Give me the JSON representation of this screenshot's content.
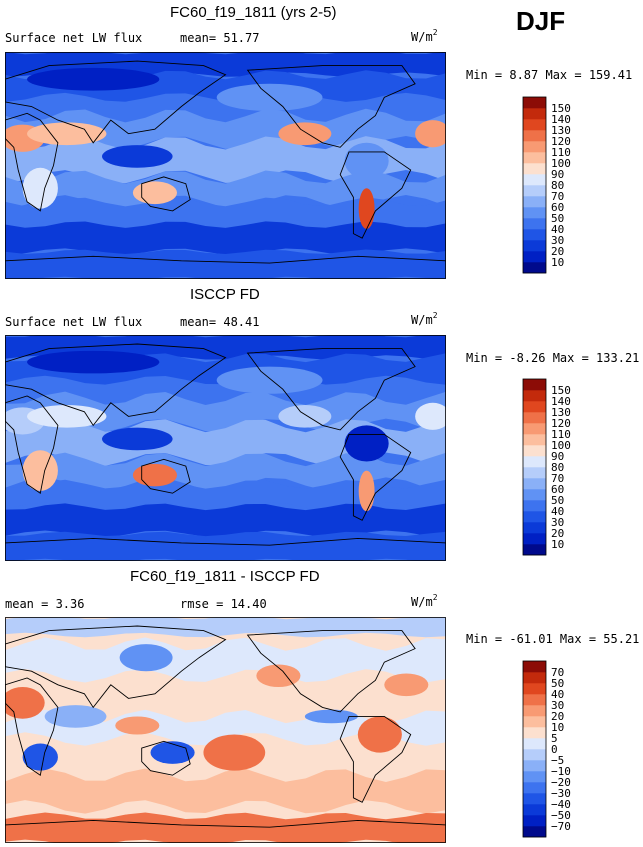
{
  "season": "DJF",
  "units_base": "W/m",
  "units_exp": "2",
  "panels": [
    {
      "title": "FC60_f19_1811 (yrs 2-5)",
      "left_label": "Surface net LW flux",
      "right_label": "mean=  51.77",
      "minmax": "Min =   8.87 Max = 159.41"
    },
    {
      "title": "ISCCP FD",
      "left_label": "Surface net LW flux",
      "right_label": "mean=  48.41",
      "minmax": "Min =  -8.26 Max = 133.21"
    },
    {
      "title": "FC60_f19_1811 - ISCCP FD",
      "left_label": "mean =   3.36",
      "right_label": "rmse =  14.40",
      "minmax": "Min = -61.01 Max =  55.21"
    }
  ],
  "chart_data": [
    {
      "type": "heatmap",
      "title": "FC60_f19_1811 (yrs 2-5)",
      "variable": "Surface net LW flux",
      "units": "W/m2",
      "mean": 51.77,
      "min": 8.87,
      "max": 159.41,
      "levels": [
        10,
        20,
        30,
        40,
        50,
        60,
        70,
        80,
        90,
        100,
        110,
        120,
        130,
        140,
        150
      ],
      "colors": [
        "#000a8c",
        "#0020c4",
        "#0b3ad8",
        "#1f55e6",
        "#3d73ef",
        "#6092f4",
        "#8ab0f7",
        "#b5cdfa",
        "#dde8fc",
        "#fce0cf",
        "#fcbe9e",
        "#f89a73",
        "#ef7148",
        "#e0471f",
        "#c32a0c",
        "#8c0c06"
      ]
    },
    {
      "type": "heatmap",
      "title": "ISCCP FD",
      "variable": "Surface net LW flux",
      "units": "W/m2",
      "mean": 48.41,
      "min": -8.26,
      "max": 133.21,
      "levels": [
        10,
        20,
        30,
        40,
        50,
        60,
        70,
        80,
        90,
        100,
        110,
        120,
        130,
        140,
        150
      ],
      "colors": [
        "#000a8c",
        "#0020c4",
        "#0b3ad8",
        "#1f55e6",
        "#3d73ef",
        "#6092f4",
        "#8ab0f7",
        "#b5cdfa",
        "#dde8fc",
        "#fce0cf",
        "#fcbe9e",
        "#f89a73",
        "#ef7148",
        "#e0471f",
        "#c32a0c",
        "#8c0c06"
      ]
    },
    {
      "type": "heatmap",
      "title": "FC60_f19_1811 - ISCCP FD",
      "units": "W/m2",
      "mean": 3.36,
      "rmse": 14.4,
      "min": -61.01,
      "max": 55.21,
      "levels": [
        -70,
        -50,
        -40,
        -30,
        -20,
        -10,
        -5,
        0,
        5,
        10,
        20,
        30,
        40,
        50,
        70
      ],
      "colors": [
        "#000a8c",
        "#0020c4",
        "#0b3ad8",
        "#1f55e6",
        "#3d73ef",
        "#6092f4",
        "#8ab0f7",
        "#b5cdfa",
        "#dde8fc",
        "#fce0cf",
        "#fcbe9e",
        "#f89a73",
        "#ef7148",
        "#e0471f",
        "#c32a0c",
        "#8c0c06"
      ]
    }
  ]
}
